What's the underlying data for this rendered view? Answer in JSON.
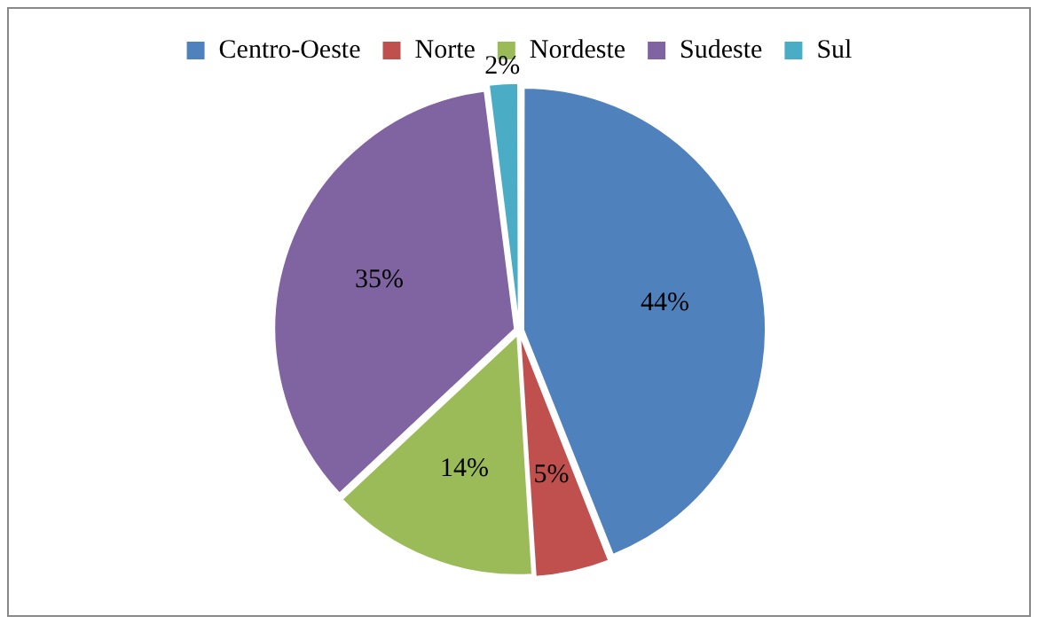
{
  "chart_data": {
    "type": "pie",
    "categories": [
      "Centro-Oeste",
      "Norte",
      "Nordeste",
      "Sudeste",
      "Sul"
    ],
    "values": [
      44,
      5,
      14,
      35,
      2
    ],
    "colors": [
      "#4f81bd",
      "#c0504d",
      "#9bbb59",
      "#8064a2",
      "#4bacc6"
    ],
    "value_labels": [
      "44%",
      "5%",
      "14%",
      "35%",
      "2%"
    ],
    "legend": "top"
  }
}
